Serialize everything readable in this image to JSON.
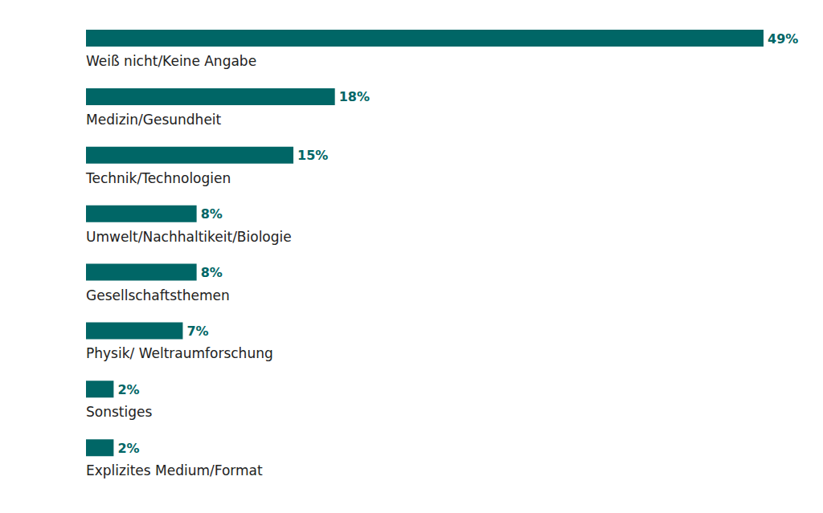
{
  "chart_data": {
    "type": "bar",
    "orientation": "horizontal",
    "categories": [
      "Weiß nicht/Keine Angabe",
      "Medizin/Gesundheit",
      "Technik/Technologien",
      "Umwelt/Nachhaltikeit/Biologie",
      "Gesellschaftsthemen",
      "Physik/ Weltraumforschung",
      "Sonstiges",
      "Explizites Medium/Format"
    ],
    "values": [
      49,
      18,
      15,
      8,
      8,
      7,
      2,
      2
    ],
    "value_labels": [
      "49%",
      "18%",
      "15%",
      "8%",
      "8%",
      "7%",
      "2%",
      "2%"
    ],
    "color": "#006666",
    "xlim": [
      0,
      49
    ],
    "data_labels": true,
    "tick_labels": false
  }
}
